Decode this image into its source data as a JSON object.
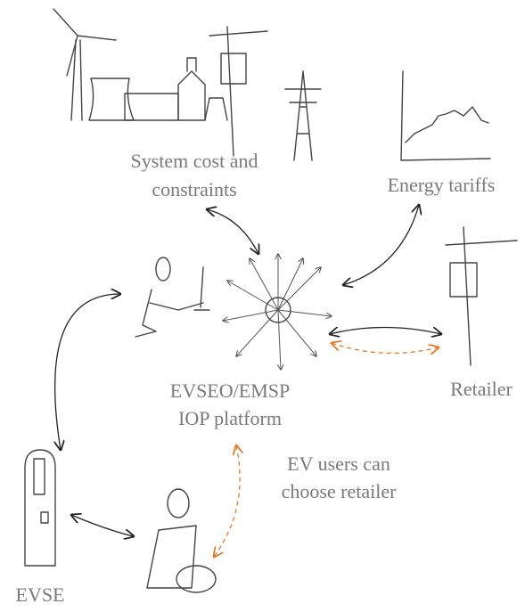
{
  "nodes": [
    {
      "label": [
        "System cost and",
        "constraints"
      ]
    },
    {
      "label": [
        "Energy tariffs"
      ]
    },
    {
      "label": [
        "EVSEO/EMSP",
        "IOP platform"
      ]
    },
    {
      "label": [
        "Retailer"
      ]
    },
    {
      "label": [
        "EV users can",
        "choose retailer"
      ]
    },
    {
      "label": [
        "EVSE"
      ]
    }
  ]
}
